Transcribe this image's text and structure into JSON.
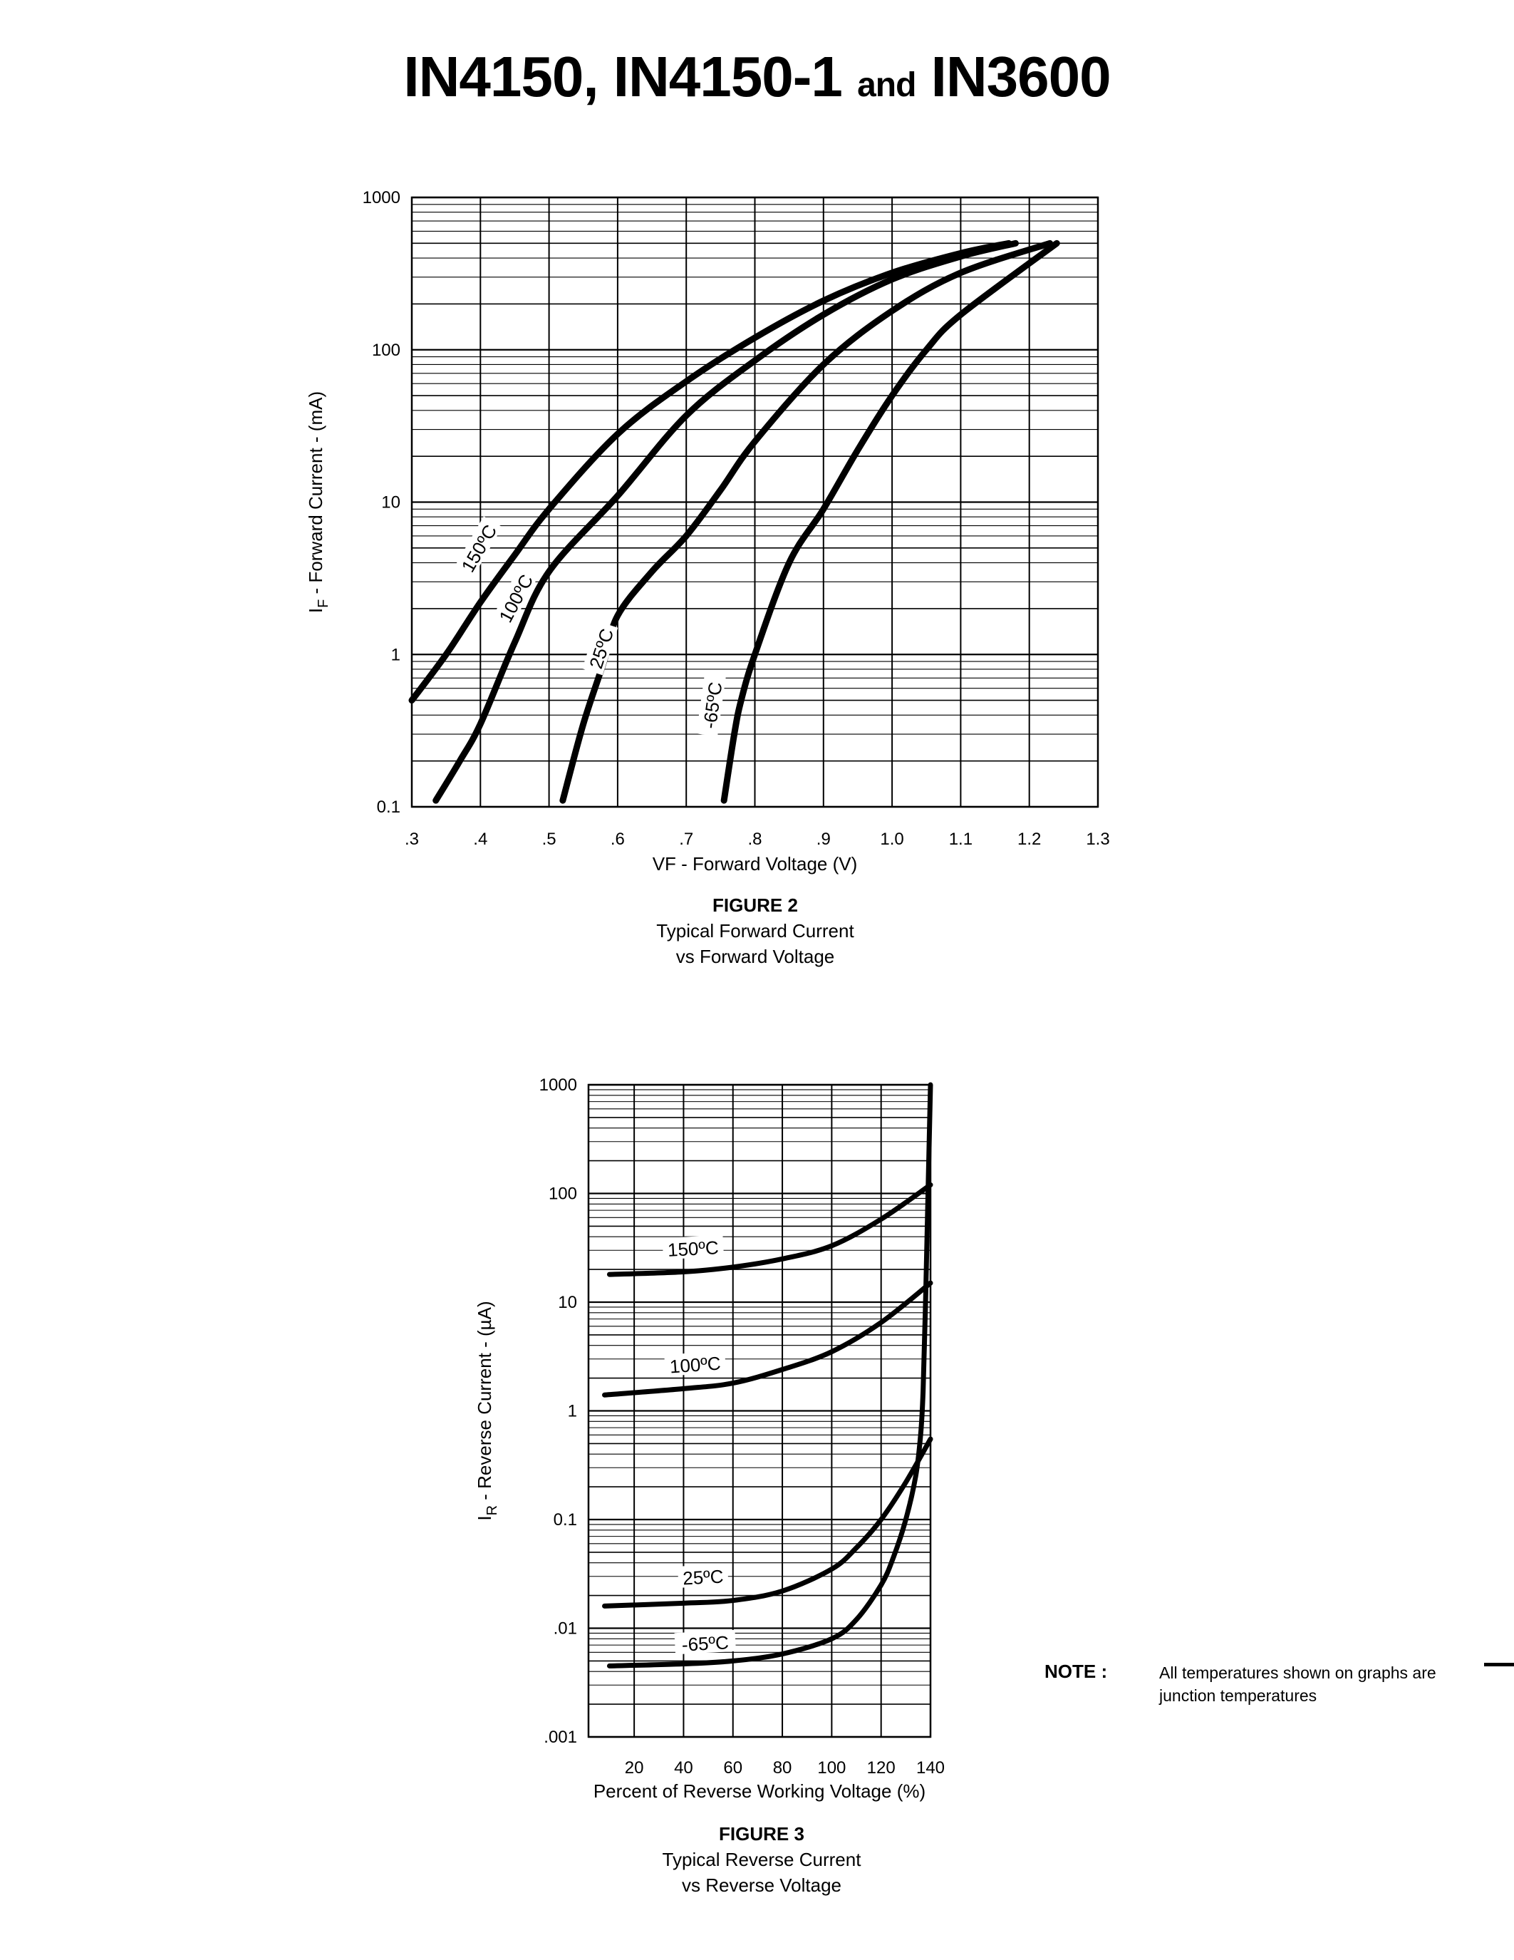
{
  "title": {
    "part1": "IN4150, IN4150-1 ",
    "part2": "and",
    "part3": " IN3600"
  },
  "figures": [
    {
      "label": "FIGURE 2",
      "line1": "Typical Forward Current",
      "line2": "vs Forward Voltage"
    },
    {
      "label": "FIGURE 3",
      "line1": "Typical Reverse Current",
      "line2": "vs Reverse Voltage"
    }
  ],
  "note": {
    "label": "NOTE :",
    "text": "All temperatures shown on graphs are junction temperatures"
  },
  "chart_data": [
    {
      "type": "line",
      "xlabel": "VF - Forward Voltage (V)",
      "ylabel_main": "I",
      "ylabel_sub": "F",
      "ylabel_rest": " - Forward Current - (mA)",
      "xlim": [
        0.3,
        1.3
      ],
      "ylim": [
        0.1,
        1000
      ],
      "yscale": "log",
      "grid": true,
      "x_ticks": [
        0.3,
        0.4,
        0.5,
        0.6,
        0.7,
        0.8,
        0.9,
        1.0,
        1.1,
        1.2,
        1.3
      ],
      "x_tick_labels": [
        ".3",
        ".4",
        ".5",
        ".6",
        ".7",
        ".8",
        ".9",
        "1.0",
        "1.1",
        "1.2",
        "1.3"
      ],
      "y_ticks": [
        0.1,
        1,
        10,
        100,
        1000
      ],
      "y_tick_labels": [
        "0.1",
        "1",
        "10",
        "100",
        "1000"
      ],
      "series": [
        {
          "name": "150ºC",
          "x": [
            0.3,
            0.35,
            0.4,
            0.45,
            0.5,
            0.6,
            0.7,
            0.8,
            0.9,
            1.0,
            1.1,
            1.17
          ],
          "y": [
            0.5,
            1.0,
            2.2,
            4.5,
            9,
            28,
            62,
            120,
            210,
            320,
            430,
            500
          ]
        },
        {
          "name": "100ºC",
          "x": [
            0.335,
            0.37,
            0.4,
            0.45,
            0.5,
            0.6,
            0.7,
            0.8,
            0.9,
            1.0,
            1.1,
            1.18
          ],
          "y": [
            0.11,
            0.2,
            0.35,
            1.2,
            3.5,
            11,
            37,
            85,
            170,
            290,
            410,
            500
          ]
        },
        {
          "name": "25ºC",
          "x": [
            0.52,
            0.55,
            0.58,
            0.6,
            0.65,
            0.7,
            0.75,
            0.8,
            0.9,
            1.0,
            1.1,
            1.23
          ],
          "y": [
            0.11,
            0.35,
            0.9,
            1.8,
            3.5,
            6,
            12,
            25,
            80,
            180,
            320,
            500
          ]
        },
        {
          "name": "-65ºC",
          "x": [
            0.755,
            0.77,
            0.78,
            0.8,
            0.85,
            0.9,
            0.95,
            1.0,
            1.05,
            1.1,
            1.24
          ],
          "y": [
            0.11,
            0.3,
            0.5,
            1,
            4,
            9,
            22,
            50,
            100,
            170,
            500
          ]
        }
      ]
    },
    {
      "type": "line",
      "xlabel": "Percent of Reverse Working Voltage (%)",
      "ylabel_main": "I",
      "ylabel_sub": "R",
      "ylabel_rest": " - Reverse Current - (µA)",
      "xlim": [
        1.5,
        140
      ],
      "ylim": [
        0.001,
        1000
      ],
      "yscale": "log",
      "grid": true,
      "x_ticks": [
        20,
        40,
        60,
        80,
        100,
        120,
        140
      ],
      "x_tick_labels": [
        "20",
        "40",
        "60",
        "80",
        "100",
        "120",
        "140"
      ],
      "y_ticks": [
        0.001,
        0.01,
        0.1,
        1,
        10,
        100,
        1000
      ],
      "y_tick_labels": [
        ".001",
        ".01",
        "0.1",
        "1",
        "10",
        "100",
        "1000"
      ],
      "series": [
        {
          "name": "150ºC",
          "x": [
            10,
            40,
            60,
            80,
            100,
            120,
            140
          ],
          "y": [
            18,
            19,
            21,
            25,
            33,
            58,
            120
          ]
        },
        {
          "name": "100ºC",
          "x": [
            8,
            40,
            60,
            80,
            100,
            120,
            140
          ],
          "y": [
            1.4,
            1.6,
            1.8,
            2.4,
            3.5,
            6.5,
            15
          ]
        },
        {
          "name": "25ºC",
          "x": [
            8,
            40,
            60,
            80,
            100,
            110,
            120,
            130,
            140
          ],
          "y": [
            0.016,
            0.017,
            0.018,
            0.022,
            0.035,
            0.055,
            0.1,
            0.22,
            0.55
          ]
        },
        {
          "name": "-65ºC",
          "x": [
            10,
            40,
            60,
            80,
            100,
            110,
            120,
            125,
            130,
            134,
            136,
            137,
            138,
            139,
            140
          ],
          "y": [
            0.0045,
            0.0047,
            0.005,
            0.0058,
            0.008,
            0.012,
            0.025,
            0.045,
            0.1,
            0.25,
            0.6,
            1.5,
            10,
            100,
            1000
          ]
        }
      ]
    }
  ]
}
